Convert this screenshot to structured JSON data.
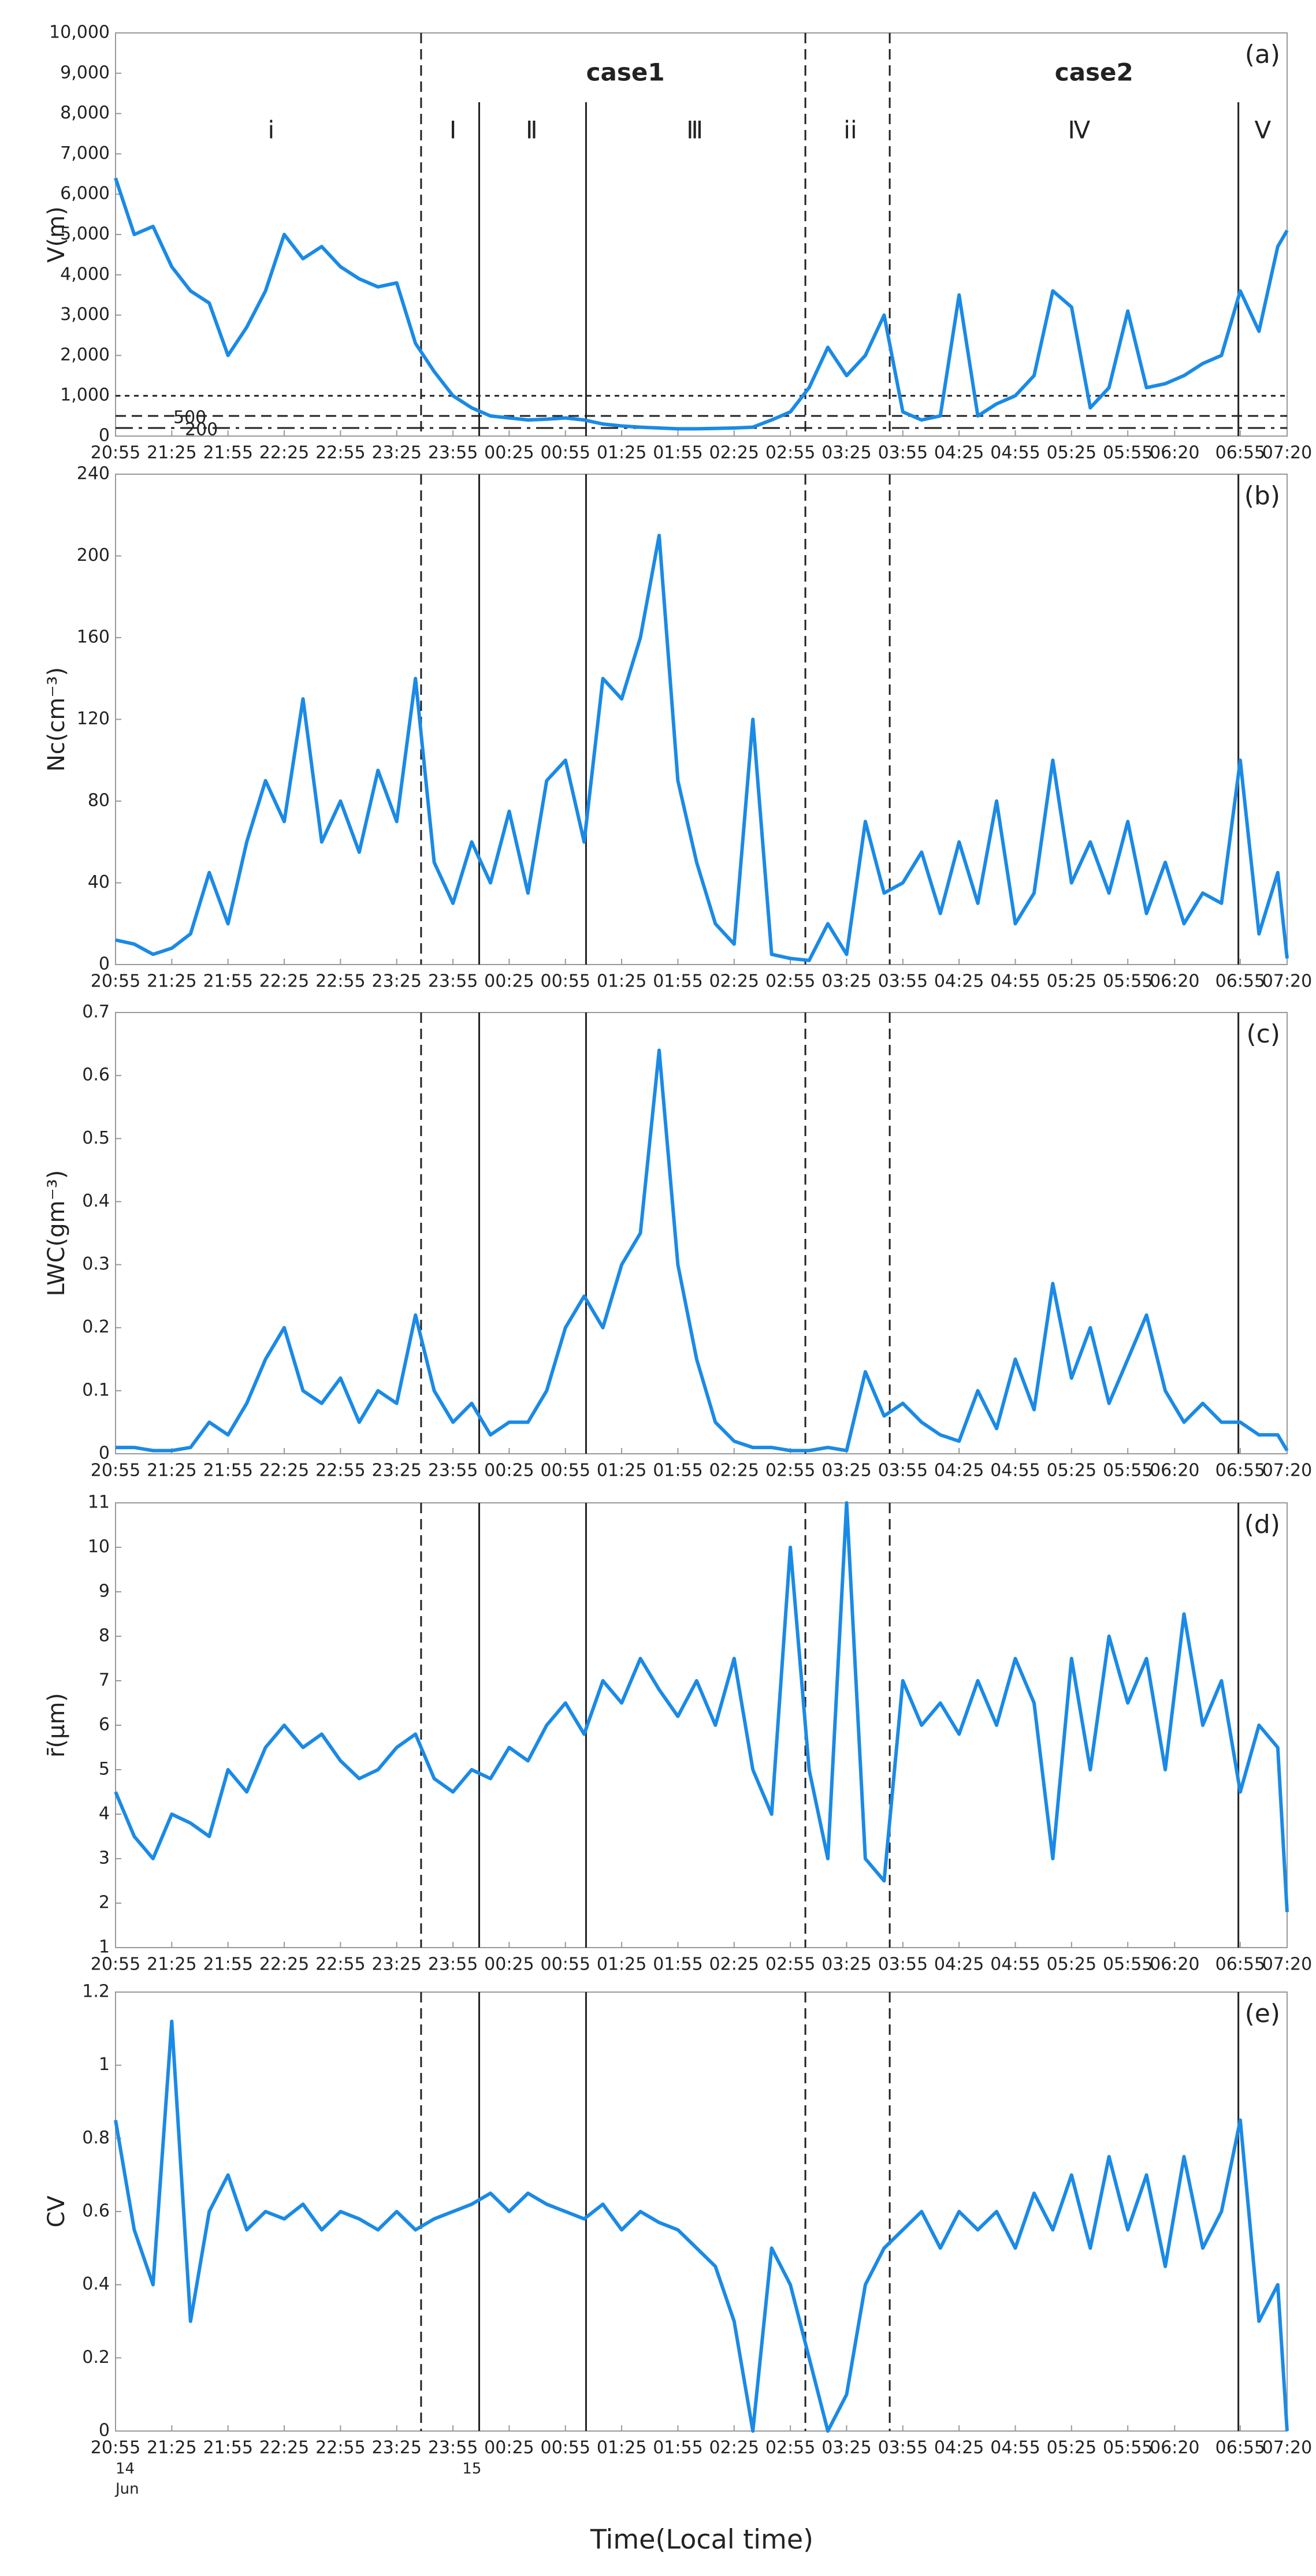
{
  "chart_data": {
    "type": "line",
    "x_label": "Time(Local time)",
    "x": [
      "20:55",
      "21:05",
      "21:15",
      "21:25",
      "21:35",
      "21:45",
      "21:55",
      "22:05",
      "22:15",
      "22:25",
      "22:35",
      "22:45",
      "22:55",
      "23:05",
      "23:15",
      "23:25",
      "23:35",
      "23:45",
      "23:55",
      "00:05",
      "00:15",
      "00:25",
      "00:35",
      "00:45",
      "00:55",
      "01:05",
      "01:15",
      "01:25",
      "01:35",
      "01:45",
      "01:55",
      "02:05",
      "02:15",
      "02:25",
      "02:35",
      "02:45",
      "02:55",
      "03:05",
      "03:15",
      "03:25",
      "03:35",
      "03:45",
      "03:55",
      "04:05",
      "04:15",
      "04:25",
      "04:35",
      "04:45",
      "04:55",
      "05:05",
      "05:15",
      "05:25",
      "05:35",
      "05:45",
      "05:55",
      "06:05",
      "06:15",
      "06:25",
      "06:35",
      "06:45",
      "06:55",
      "07:05",
      "07:15",
      "07:20"
    ],
    "xlim": [
      "20:55",
      "07:20"
    ],
    "xticks": [
      "20:55",
      "21:25",
      "21:55",
      "22:25",
      "22:55",
      "23:25",
      "23:55",
      "00:25",
      "00:55",
      "01:25",
      "01:55",
      "02:25",
      "02:55",
      "03:25",
      "03:55",
      "04:25",
      "04:55",
      "05:25",
      "05:55",
      "06:20",
      "06:55",
      "07:20"
    ],
    "date_labels": [
      {
        "x": "20:55",
        "day": "14",
        "month": "Jun"
      },
      {
        "x": "00:00",
        "day": "15"
      }
    ],
    "vlines": [
      {
        "x": "23:38",
        "style": "dashed"
      },
      {
        "x": "00:09",
        "style": "solid"
      },
      {
        "x": "01:06",
        "style": "solid"
      },
      {
        "x": "03:03",
        "style": "dashed"
      },
      {
        "x": "03:48",
        "style": "dashed"
      },
      {
        "x": "06:54",
        "style": "solid"
      }
    ],
    "annotations": [
      {
        "x": "01:27",
        "text": "case1",
        "weight": "bold"
      },
      {
        "x": "05:37",
        "text": "case2",
        "weight": "bold"
      },
      {
        "x": "22:18",
        "text": "i"
      },
      {
        "x": "23:55",
        "text": "I"
      },
      {
        "x": "00:37",
        "text": "Ⅱ"
      },
      {
        "x": "02:04",
        "text": "Ⅲ"
      },
      {
        "x": "03:27",
        "text": "ii"
      },
      {
        "x": "05:29",
        "text": "Ⅳ"
      },
      {
        "x": "07:07",
        "text": "Ⅴ"
      }
    ],
    "panels": [
      {
        "label": "(a)",
        "ylabel": "V(m)",
        "ylim": [
          0,
          10000
        ],
        "yticks": [
          0,
          {
            "value": 1000,
            "label": "1,000"
          },
          {
            "value": 2000,
            "label": "2,000"
          },
          {
            "value": 3000,
            "label": "3,000"
          },
          {
            "value": 4000,
            "label": "4,000"
          },
          {
            "value": 5000,
            "label": "5,000"
          },
          {
            "value": 6000,
            "label": "6,000"
          },
          {
            "value": 7000,
            "label": "7,000"
          },
          {
            "value": 8000,
            "label": "8,000"
          },
          {
            "value": 9000,
            "label": "9,000"
          },
          {
            "value": 10000,
            "label": "10,000"
          }
        ],
        "hlines": [
          {
            "value": 1000,
            "style": "dotted"
          },
          {
            "value": 500,
            "style": "dashed",
            "label": "500"
          },
          {
            "value": 200,
            "style": "dashdot",
            "label": "200"
          }
        ],
        "series": [
          {
            "color": "#1a8ae6",
            "values": [
              6400,
              5000,
              5200,
              4200,
              3600,
              3300,
              2000,
              2700,
              3600,
              5000,
              4400,
              4700,
              4200,
              3900,
              3700,
              3800,
              2300,
              1600,
              1000,
              700,
              500,
              450,
              400,
              420,
              450,
              400,
              300,
              250,
              220,
              200,
              180,
              180,
              190,
              200,
              220,
              400,
              600,
              1200,
              2200,
              1500,
              2000,
              3000,
              600,
              400,
              500,
              3500,
              500,
              800,
              1000,
              1500,
              3600,
              3200,
              700,
              1200,
              3100,
              1200,
              1300,
              1500,
              1800,
              2000,
              3600,
              2600,
              4700,
              5100
            ]
          }
        ]
      },
      {
        "label": "(b)",
        "ylabel": "Nc(cm⁻³)",
        "ylim": [
          0,
          240
        ],
        "yticks": [
          0,
          40,
          80,
          120,
          160,
          200,
          240
        ],
        "series": [
          {
            "color": "#1a8ae6",
            "values": [
              12,
              10,
              5,
              8,
              15,
              45,
              20,
              60,
              90,
              70,
              130,
              60,
              80,
              55,
              95,
              70,
              140,
              50,
              30,
              60,
              40,
              75,
              35,
              90,
              100,
              60,
              140,
              130,
              160,
              210,
              90,
              50,
              20,
              10,
              120,
              5,
              3,
              2,
              20,
              5,
              70,
              35,
              40,
              55,
              25,
              60,
              30,
              80,
              20,
              35,
              100,
              40,
              60,
              35,
              70,
              25,
              50,
              20,
              35,
              30,
              100,
              15,
              45,
              3
            ]
          }
        ]
      },
      {
        "label": "(c)",
        "ylabel": "LWC(gm⁻³)",
        "ylim": [
          0,
          0.7
        ],
        "yticks": [
          0,
          0.1,
          0.2,
          0.3,
          0.4,
          0.5,
          0.6,
          0.7
        ],
        "series": [
          {
            "color": "#1a8ae6",
            "values": [
              0.01,
              0.01,
              0.005,
              0.005,
              0.01,
              0.05,
              0.03,
              0.08,
              0.15,
              0.2,
              0.1,
              0.08,
              0.12,
              0.05,
              0.1,
              0.08,
              0.22,
              0.1,
              0.05,
              0.08,
              0.03,
              0.05,
              0.05,
              0.1,
              0.2,
              0.25,
              0.2,
              0.3,
              0.35,
              0.64,
              0.3,
              0.15,
              0.05,
              0.02,
              0.01,
              0.01,
              0.005,
              0.005,
              0.01,
              0.005,
              0.13,
              0.06,
              0.08,
              0.05,
              0.03,
              0.02,
              0.1,
              0.04,
              0.15,
              0.07,
              0.27,
              0.12,
              0.2,
              0.08,
              0.15,
              0.22,
              0.1,
              0.05,
              0.08,
              0.05,
              0.05,
              0.03,
              0.03,
              0.005
            ]
          }
        ]
      },
      {
        "label": "(d)",
        "ylabel": "r̄(μm)",
        "ylim": [
          1,
          11
        ],
        "yticks": [
          1,
          2,
          3,
          4,
          5,
          6,
          7,
          8,
          9,
          10,
          11
        ],
        "series": [
          {
            "color": "#1a8ae6",
            "values": [
              4.5,
              3.5,
              3,
              4,
              3.8,
              3.5,
              5,
              4.5,
              5.5,
              6,
              5.5,
              5.8,
              5.2,
              4.8,
              5,
              5.5,
              5.8,
              4.8,
              4.5,
              5,
              4.8,
              5.5,
              5.2,
              6,
              6.5,
              5.8,
              7,
              6.5,
              7.5,
              6.8,
              6.2,
              7,
              6,
              7.5,
              5,
              4,
              10,
              5,
              3,
              11,
              3,
              2.5,
              7,
              6,
              6.5,
              5.8,
              7,
              6,
              7.5,
              6.5,
              3,
              7.5,
              5,
              8,
              6.5,
              7.5,
              5,
              8.5,
              6,
              7,
              4.5,
              6,
              5.5,
              1.8
            ]
          }
        ]
      },
      {
        "label": "(e)",
        "ylabel": "CV",
        "ylim": [
          0,
          1.2
        ],
        "yticks": [
          0,
          0.2,
          0.4,
          0.6,
          0.8,
          1,
          1.2
        ],
        "series": [
          {
            "color": "#1a8ae6",
            "values": [
              0.85,
              0.55,
              0.4,
              1.12,
              0.3,
              0.6,
              0.7,
              0.55,
              0.6,
              0.58,
              0.62,
              0.55,
              0.6,
              0.58,
              0.55,
              0.6,
              0.55,
              0.58,
              0.6,
              0.62,
              0.65,
              0.6,
              0.65,
              0.62,
              0.6,
              0.58,
              0.62,
              0.55,
              0.6,
              0.57,
              0.55,
              0.5,
              0.45,
              0.3,
              0,
              0.5,
              0.4,
              0.2,
              0,
              0.1,
              0.4,
              0.5,
              0.55,
              0.6,
              0.5,
              0.6,
              0.55,
              0.6,
              0.5,
              0.65,
              0.55,
              0.7,
              0.5,
              0.75,
              0.55,
              0.7,
              0.45,
              0.75,
              0.5,
              0.6,
              0.85,
              0.3,
              0.4,
              0
            ]
          }
        ]
      }
    ]
  }
}
